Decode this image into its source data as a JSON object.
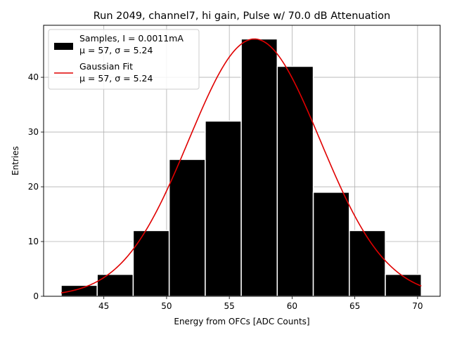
{
  "chart_data": {
    "type": "bar",
    "title": "Run 2049, channel7, hi gain, Pulse w/ 70.0 dB Attenuation",
    "xlabel": "Energy from OFCs [ADC Counts]",
    "ylabel": "Entries",
    "xlim": [
      40.2,
      71.8
    ],
    "ylim": [
      0,
      49.5
    ],
    "xticks": [
      45,
      50,
      55,
      60,
      65,
      70
    ],
    "yticks": [
      0,
      10,
      20,
      30,
      40
    ],
    "grid": true,
    "histogram": {
      "bin_edges": [
        41.6,
        44.47,
        47.34,
        50.21,
        53.08,
        55.95,
        58.82,
        61.69,
        64.56,
        67.43,
        70.3
      ],
      "counts": [
        2,
        4,
        12,
        25,
        32,
        47,
        42,
        19,
        12,
        4
      ],
      "color": "#000000",
      "edgecolor": "#ffffff"
    },
    "fit": {
      "type": "gaussian",
      "mu": 57,
      "sigma": 5.24,
      "amplitude": 47,
      "color": "#e00000"
    },
    "series": [
      {
        "name": "Samples, I = 0.0011mA",
        "name_line2": "μ = 57, σ = 5.24"
      },
      {
        "name": "Gaussian Fit",
        "name_line2": "μ = 57, σ = 5.24"
      }
    ],
    "legend_position": "top-left"
  }
}
